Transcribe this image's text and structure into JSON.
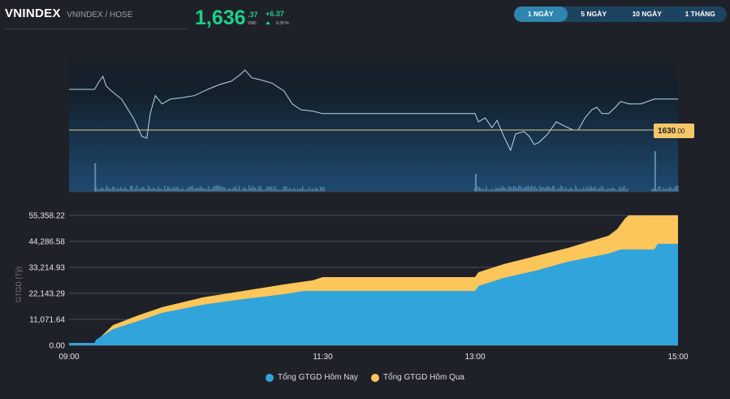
{
  "header": {
    "symbol": "VNINDEX",
    "subtitle": "VNINDEX / HOSE",
    "price_int": "1,636",
    "price_dec": ".37",
    "currency": "VND",
    "change": "+6.37",
    "change_pct": "0.39 %",
    "trend_icon": "triangle-up-icon"
  },
  "tabs": [
    {
      "label": "1 NGÀY",
      "active": true
    },
    {
      "label": "5 NGÀY"
    },
    {
      "label": "10 NGÀY"
    },
    {
      "label": "1 THÁNG"
    }
  ],
  "colors": {
    "up": "#1ecf8a",
    "today": "#32a4dc",
    "yesterday": "#fcc65a",
    "reference": "#f5c76b"
  },
  "chart_data": [
    {
      "type": "line",
      "reference_price": 1630,
      "reference_label_int": "1630",
      "reference_label_dec": ".00",
      "points": [
        [
          "09:00",
          1638.4
        ],
        [
          "09:15",
          1638.4
        ],
        [
          "09:18",
          1640.1
        ],
        [
          "09:20",
          1641.1
        ],
        [
          "09:22",
          1639.1
        ],
        [
          "09:25",
          1638.1
        ],
        [
          "09:31",
          1636.4
        ],
        [
          "09:38",
          1632.5
        ],
        [
          "09:43",
          1628.7
        ],
        [
          "09:46",
          1628.3
        ],
        [
          "09:48",
          1633.4
        ],
        [
          "09:51",
          1637.1
        ],
        [
          "09:55",
          1635.4
        ],
        [
          "10:00",
          1636.4
        ],
        [
          "10:07",
          1636.7
        ],
        [
          "10:14",
          1637.1
        ],
        [
          "10:22",
          1638.4
        ],
        [
          "10:29",
          1639.4
        ],
        [
          "10:36",
          1640.1
        ],
        [
          "10:41",
          1641.4
        ],
        [
          "10:44",
          1642.4
        ],
        [
          "10:48",
          1640.8
        ],
        [
          "10:53",
          1640.4
        ],
        [
          "11:00",
          1639.7
        ],
        [
          "11:07",
          1638.1
        ],
        [
          "11:12",
          1635.4
        ],
        [
          "11:17",
          1634.2
        ],
        [
          "11:24",
          1633.9
        ],
        [
          "11:30",
          1633.4
        ],
        [
          "13:00",
          1633.4
        ],
        [
          "13:02",
          1631.7
        ],
        [
          "13:06",
          1632.5
        ],
        [
          "13:10",
          1630.5
        ],
        [
          "13:13",
          1632.0
        ],
        [
          "13:17",
          1628.7
        ],
        [
          "13:21",
          1625.8
        ],
        [
          "13:24",
          1629.2
        ],
        [
          "13:29",
          1629.7
        ],
        [
          "13:32",
          1628.7
        ],
        [
          "13:35",
          1627.0
        ],
        [
          "13:38",
          1627.5
        ],
        [
          "13:43",
          1629.2
        ],
        [
          "13:48",
          1631.7
        ],
        [
          "13:53",
          1630.8
        ],
        [
          "13:58",
          1630.0
        ],
        [
          "14:01",
          1630.0
        ],
        [
          "14:05",
          1632.5
        ],
        [
          "14:09",
          1634.2
        ],
        [
          "14:12",
          1634.7
        ],
        [
          "14:15",
          1633.4
        ],
        [
          "14:19",
          1633.4
        ],
        [
          "14:23",
          1634.7
        ],
        [
          "14:26",
          1635.9
        ],
        [
          "14:31",
          1635.4
        ],
        [
          "14:38",
          1635.4
        ],
        [
          "14:46",
          1636.4
        ],
        [
          "15:00",
          1636.4
        ]
      ],
      "volume_spikes": [
        "09:15",
        "13:00",
        "14:46"
      ]
    },
    {
      "type": "area",
      "ylabel": "GTGD (Tỷ)",
      "yticks": [
        "0.00",
        "11,071.64",
        "22,143.29",
        "33,214.93",
        "44,286.58",
        "55,358.22"
      ],
      "ylim": [
        0,
        55358.22
      ],
      "xticks": [
        "09:00",
        "11:30",
        "13:00",
        "15:00"
      ],
      "series": [
        {
          "name": "Tổng GTGD Hôm Qua",
          "color": "#fcc65a",
          "points": [
            [
              "09:00",
              1038
            ],
            [
              "09:15",
              1038
            ],
            [
              "09:16",
              1730
            ],
            [
              "09:26",
              8650
            ],
            [
              "09:41",
              12800
            ],
            [
              "09:55",
              16260
            ],
            [
              "10:19",
              20410
            ],
            [
              "10:43",
              23180
            ],
            [
              "11:07",
              25950
            ],
            [
              "11:24",
              27680
            ],
            [
              "11:30",
              29060
            ],
            [
              "13:00",
              29060
            ],
            [
              "13:02",
              31140
            ],
            [
              "13:17",
              34600
            ],
            [
              "13:36",
              38060
            ],
            [
              "13:55",
              41520
            ],
            [
              "14:19",
              46710
            ],
            [
              "14:24",
              49480
            ],
            [
              "14:29",
              54320
            ],
            [
              "14:31",
              55358
            ],
            [
              "15:00",
              55358
            ]
          ]
        },
        {
          "name": "Tổng GTGD Hôm Nay",
          "color": "#32a4dc",
          "points": [
            [
              "09:00",
              1038
            ],
            [
              "09:15",
              1038
            ],
            [
              "09:16",
              2422
            ],
            [
              "09:26",
              6920
            ],
            [
              "09:41",
              10380
            ],
            [
              "09:55",
              13840
            ],
            [
              "10:19",
              17300
            ],
            [
              "10:43",
              19720
            ],
            [
              "11:07",
              21800
            ],
            [
              "11:19",
              23180
            ],
            [
              "11:30",
              23180
            ],
            [
              "13:00",
              23180
            ],
            [
              "13:02",
              25260
            ],
            [
              "13:17",
              28720
            ],
            [
              "13:36",
              31830
            ],
            [
              "13:55",
              35640
            ],
            [
              "14:19",
              39100
            ],
            [
              "14:26",
              40830
            ],
            [
              "14:46",
              40830
            ],
            [
              "14:48",
              43250
            ],
            [
              "15:00",
              43250
            ]
          ]
        }
      ]
    }
  ]
}
